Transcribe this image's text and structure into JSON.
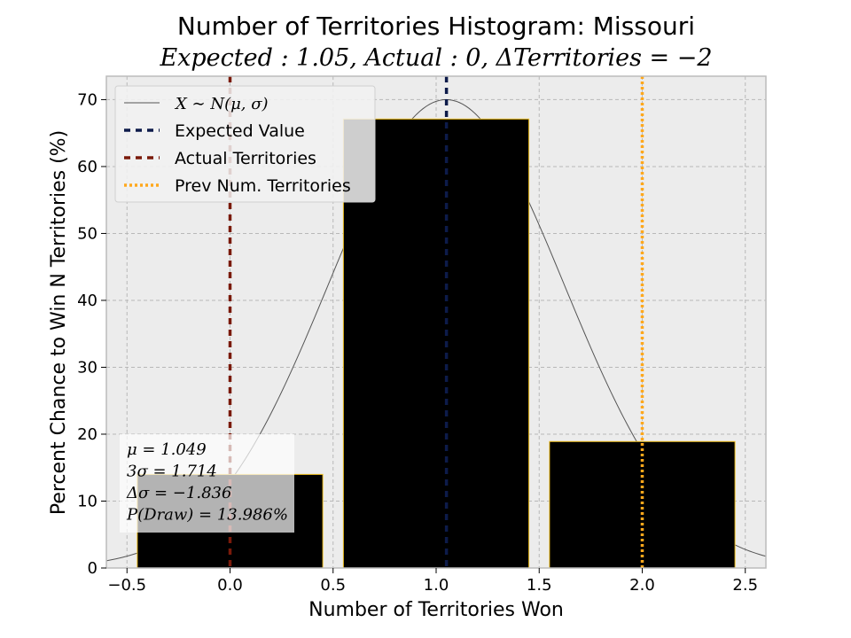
{
  "chart_data": {
    "type": "bar",
    "title": "Number of Territories Histogram: Missouri",
    "subtitle": "Expected : 1.05, Actual : 0, ΔTerritories = −2",
    "xlabel": "Number of Territories Won",
    "ylabel": "Percent Chance to Win N Territories (%)",
    "xlim": [
      -0.6,
      2.6
    ],
    "ylim": [
      0,
      73.5
    ],
    "xticks": [
      -0.5,
      0.0,
      0.5,
      1.0,
      1.5,
      2.0,
      2.5
    ],
    "xtick_labels": [
      "−0.5",
      "0.0",
      "0.5",
      "1.0",
      "1.5",
      "2.0",
      "2.5"
    ],
    "yticks": [
      0,
      10,
      20,
      30,
      40,
      50,
      60,
      70
    ],
    "ytick_labels": [
      "0",
      "10",
      "20",
      "30",
      "40",
      "50",
      "60",
      "70"
    ],
    "grid": true,
    "categories": [
      0,
      1,
      2
    ],
    "values": [
      13.986,
      67.1,
      18.9
    ],
    "bar_width": 0.9,
    "bar_color": "#000000",
    "bar_edge_color": "#f0c020",
    "normal_curve": {
      "mu": 1.049,
      "sigma": 0.571,
      "peak": 70.0,
      "color": "#555555"
    },
    "vlines": [
      {
        "x": 1.05,
        "color": "#0d1b4a",
        "style": "dashed"
      },
      {
        "x": 0,
        "color": "#7a1a0a",
        "style": "dashed"
      },
      {
        "x": 2,
        "color": "#ffa81c",
        "style": "dotted"
      }
    ],
    "legend": {
      "placement": "top-left",
      "entries": [
        {
          "label": "X ∼ N(μ, σ)",
          "math": true,
          "color": "#555555",
          "style": "thin"
        },
        {
          "label": "Expected Value",
          "math": false,
          "color": "#0d1b4a",
          "style": "dashed"
        },
        {
          "label": "Actual Territories",
          "math": false,
          "color": "#7a1a0a",
          "style": "dashed"
        },
        {
          "label": "Prev Num. Territories",
          "math": false,
          "color": "#ffa81c",
          "style": "dotted"
        }
      ]
    },
    "stats_box": {
      "placement": "bottom-left",
      "lines": [
        "μ = 1.049",
        "3σ = 1.714",
        "Δσ = −1.836",
        "P(Draw) = 13.986%"
      ]
    }
  }
}
